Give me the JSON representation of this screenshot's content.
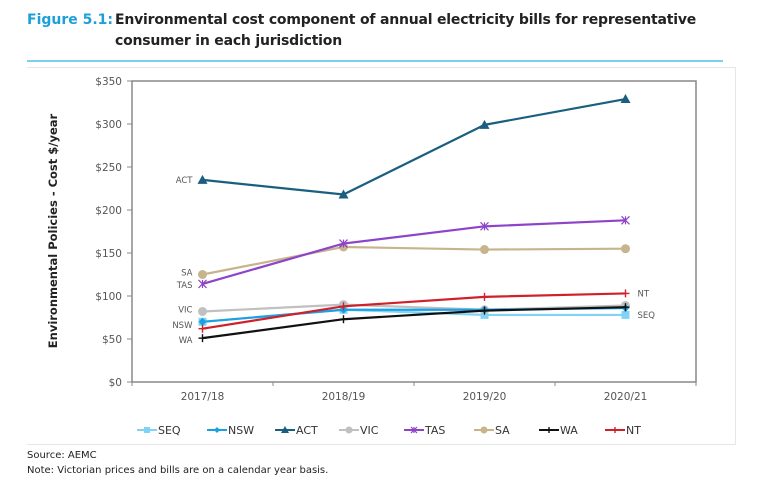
{
  "figure": {
    "number": "Figure 5.1:",
    "title": "Environmental cost component of annual electricity bills for representative consumer in each jurisdiction",
    "title_line1": "Environmental cost component of annual electricity bills for representative",
    "title_line2": "consumer in each jurisdiction",
    "accent_color": "#1ba1d8",
    "rule_color": "#7ccfee"
  },
  "footer": {
    "source": "Source: AEMC",
    "note": "Note: Victorian prices and bills are on a calendar year basis."
  },
  "chart_data": {
    "type": "line",
    "title": "Environmental cost component of annual electricity bills for representative consumer in each jurisdiction",
    "xlabel": "",
    "ylabel": "Environmental Policies - Cost  $/year",
    "categories": [
      "2017/18",
      "2018/19",
      "2019/20",
      "2020/21"
    ],
    "ylim": [
      0,
      350
    ],
    "yticks": [
      0,
      50,
      100,
      150,
      200,
      250,
      300,
      350
    ],
    "ytick_labels": [
      "$0",
      "$50",
      "$100",
      "$150",
      "$200",
      "$250",
      "$300",
      "$350"
    ],
    "grid": false,
    "legend_position": "bottom",
    "series": [
      {
        "name": "SEQ",
        "color": "#7fd3f7",
        "marker": "square",
        "values": [
          70,
          84,
          78,
          78
        ],
        "end_label": "SEQ"
      },
      {
        "name": "NSW",
        "color": "#1ba1e2",
        "marker": "diamond",
        "values": [
          70,
          84,
          84,
          86
        ],
        "start_label": "NSW"
      },
      {
        "name": "ACT",
        "color": "#1a5f7f",
        "marker": "triangle",
        "values": [
          235,
          218,
          299,
          329
        ],
        "start_label": "ACT"
      },
      {
        "name": "VIC",
        "color": "#c0c0c0",
        "marker": "circle",
        "values": [
          82,
          90,
          84,
          89
        ],
        "start_label": "VIC"
      },
      {
        "name": "TAS",
        "color": "#8e44c8",
        "marker": "star",
        "values": [
          114,
          161,
          181,
          188
        ],
        "start_label": "TAS"
      },
      {
        "name": "SA",
        "color": "#c8b48c",
        "marker": "circle",
        "values": [
          125,
          157,
          154,
          155
        ],
        "start_label": "SA"
      },
      {
        "name": "WA",
        "color": "#111111",
        "marker": "plus",
        "values": [
          51,
          73,
          83,
          87
        ],
        "start_label": "WA"
      },
      {
        "name": "NT",
        "color": "#d0202a",
        "marker": "plus",
        "values": [
          62,
          88,
          99,
          103
        ],
        "end_label": "NT"
      }
    ]
  }
}
